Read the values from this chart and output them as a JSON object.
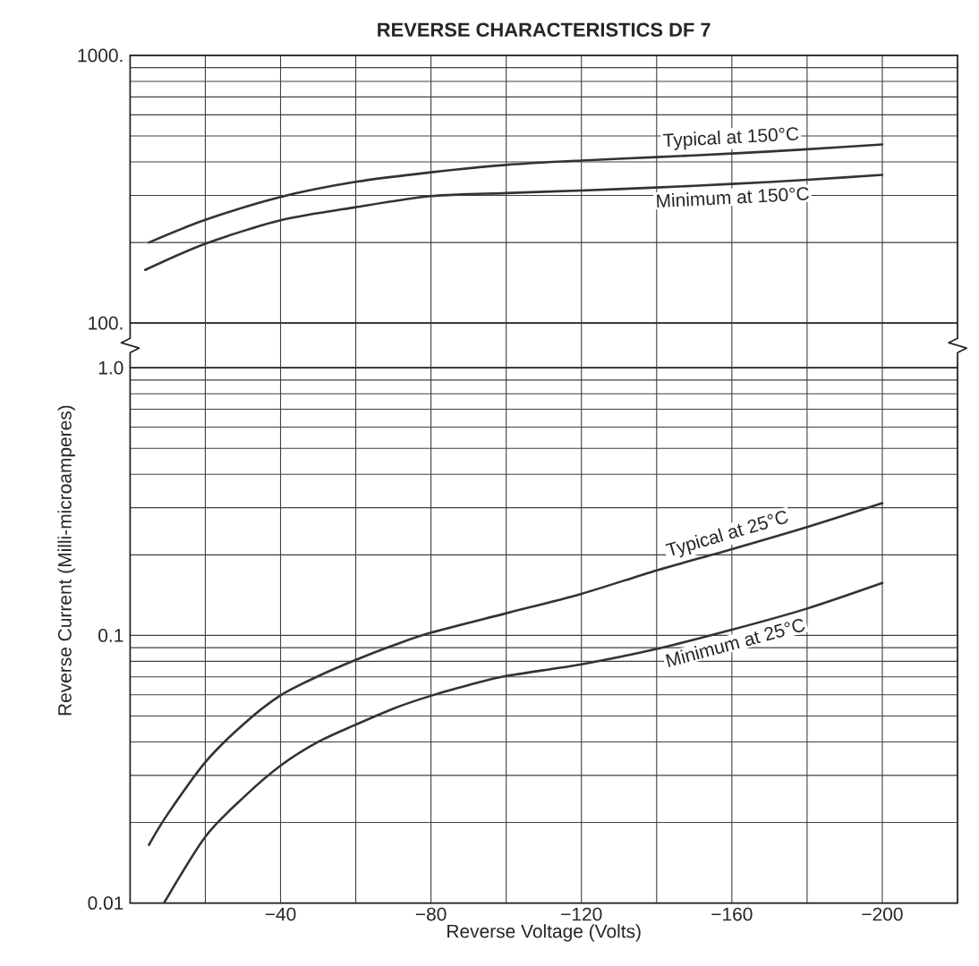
{
  "chart_data": [
    {
      "type": "line",
      "title": "REVERSE CHARACTERISTICS DF 7",
      "xlim": [
        0,
        -220
      ],
      "xticks": [
        {
          "value": -20,
          "label": null
        },
        {
          "value": -40,
          "label": null
        },
        {
          "value": -60,
          "label": null
        },
        {
          "value": -80,
          "label": null
        },
        {
          "value": -100,
          "label": null
        },
        {
          "value": -120,
          "label": null
        },
        {
          "value": -140,
          "label": null
        },
        {
          "value": -160,
          "label": null
        },
        {
          "value": -180,
          "label": null
        },
        {
          "value": -200,
          "label": null
        }
      ],
      "ylim": [
        100,
        1000
      ],
      "yticks": [
        {
          "value": 100,
          "label": "100."
        },
        {
          "value": 200,
          "label": null
        },
        {
          "value": 300,
          "label": null
        },
        {
          "value": 400,
          "label": null
        },
        {
          "value": 500,
          "label": null
        },
        {
          "value": 600,
          "label": null
        },
        {
          "value": 700,
          "label": null
        },
        {
          "value": 800,
          "label": null
        },
        {
          "value": 900,
          "label": null
        },
        {
          "value": 1000,
          "label": "1000."
        }
      ],
      "log": "y",
      "grid": true,
      "tick_labels": "y",
      "series": [
        {
          "name": "Typical at 150°C",
          "color": "#333333",
          "x": [
            -5,
            -20,
            -40,
            -60,
            -80,
            -100,
            -120,
            -140,
            -160,
            -180,
            -200
          ],
          "values": [
            200,
            243,
            296,
            337,
            366,
            390,
            405,
            417,
            430,
            446,
            465
          ]
        },
        {
          "name": "Minimum at 150°C",
          "color": "#333333",
          "x": [
            -4,
            -20,
            -40,
            -60,
            -80,
            -100,
            -120,
            -140,
            -160,
            -180,
            -200
          ],
          "values": [
            158,
            198,
            242,
            271,
            298,
            306,
            313,
            321,
            331,
            343,
            358
          ]
        }
      ]
    },
    {
      "type": "line",
      "xlabel": "Reverse Voltage (Volts)",
      "ylabel": "Reverse Current (Milli-microamperes)",
      "xlim": [
        0,
        -220
      ],
      "xticks": [
        {
          "value": -20,
          "label": null
        },
        {
          "value": -40,
          "label": "−40"
        },
        {
          "value": -60,
          "label": null
        },
        {
          "value": -80,
          "label": "−80"
        },
        {
          "value": -100,
          "label": null
        },
        {
          "value": -120,
          "label": "−120"
        },
        {
          "value": -140,
          "label": null
        },
        {
          "value": -160,
          "label": "−160"
        },
        {
          "value": -180,
          "label": null
        },
        {
          "value": -200,
          "label": "−200"
        }
      ],
      "ylim": [
        0.01,
        1
      ],
      "yticks": [
        0.01,
        {
          "value": 0.02,
          "label": null
        },
        {
          "value": 0.03,
          "label": null
        },
        {
          "value": 0.04,
          "label": null
        },
        {
          "value": 0.05,
          "label": null
        },
        {
          "value": 0.06,
          "label": null
        },
        {
          "value": 0.07,
          "label": null
        },
        {
          "value": 0.08,
          "label": null
        },
        {
          "value": 0.09,
          "label": null
        },
        0.1,
        {
          "value": 0.2,
          "label": null
        },
        {
          "value": 0.3,
          "label": null
        },
        {
          "value": 0.4,
          "label": null
        },
        {
          "value": 0.5,
          "label": null
        },
        {
          "value": 0.6,
          "label": null
        },
        {
          "value": 0.7,
          "label": null
        },
        {
          "value": 0.8,
          "label": null
        },
        {
          "value": 0.9,
          "label": null
        },
        {
          "value": 1,
          "label": "1.0"
        }
      ],
      "log": "y",
      "grid": true,
      "series": [
        {
          "name": "Typical at 25°C",
          "color": "#333333",
          "x": [
            -5,
            -10,
            -20,
            -30,
            -40,
            -50,
            -60,
            -70,
            -80,
            -100,
            -120,
            -140,
            -160,
            -180,
            -200
          ],
          "values": [
            0.0165,
            0.0215,
            0.0336,
            0.0464,
            0.0597,
            0.0704,
            0.081,
            0.0918,
            0.1024,
            0.121,
            0.143,
            0.175,
            0.21,
            0.254,
            0.312
          ]
        },
        {
          "name": "Minimum at 25°C",
          "color": "#333333",
          "x": [
            -9,
            -20,
            -30,
            -40,
            -50,
            -60,
            -70,
            -80,
            -90,
            -100,
            -120,
            -140,
            -160,
            -180,
            -200
          ],
          "values": [
            0.01,
            0.0177,
            0.0247,
            0.0326,
            0.04,
            0.0464,
            0.0533,
            0.0595,
            0.0652,
            0.0705,
            0.078,
            0.089,
            0.105,
            0.126,
            0.157
          ]
        }
      ]
    }
  ]
}
